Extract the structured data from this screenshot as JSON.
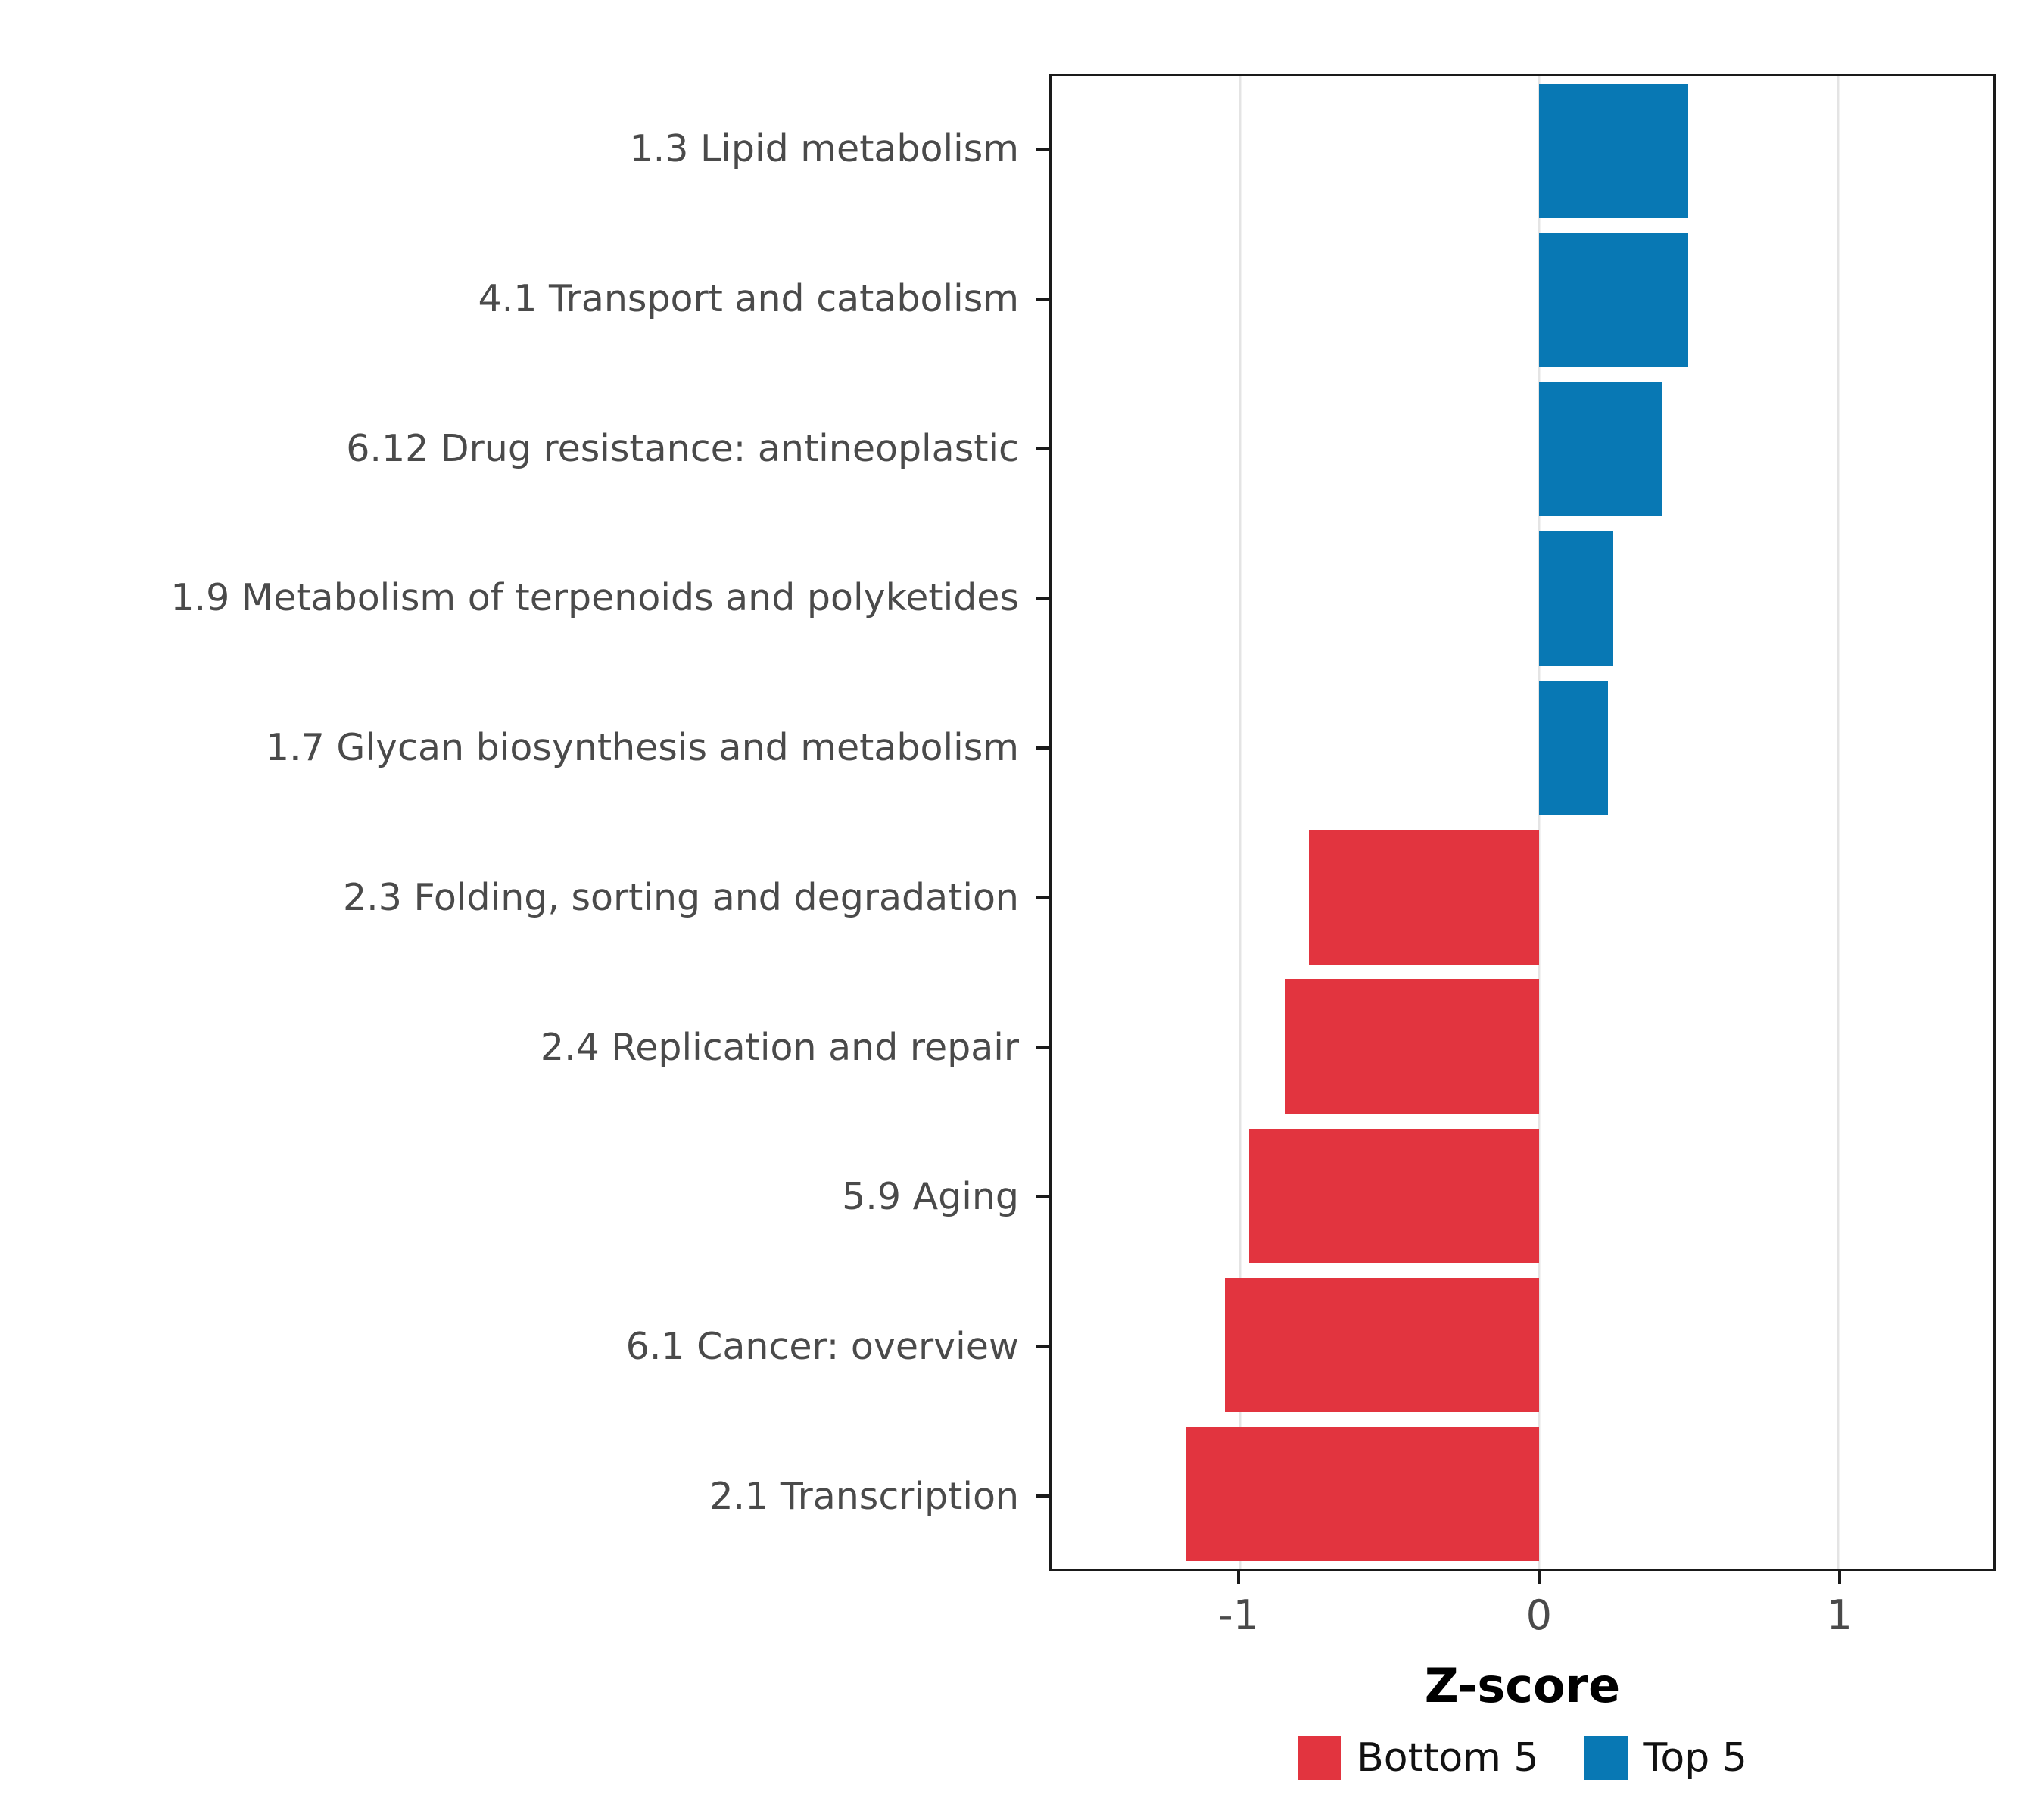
{
  "figure": {
    "background": "#ffffff",
    "panel_border_color": "#1a1a1a",
    "gridline_color": "#e4e4e4",
    "tick_label_color": "#4a4a4a"
  },
  "chart_data": {
    "type": "bar",
    "orientation": "horizontal",
    "title": "",
    "xlabel": "Z-score",
    "ylabel": "",
    "xlim": [
      -1.63,
      1.52
    ],
    "x_ticks": [
      -1,
      0,
      1
    ],
    "grid": "major-x",
    "legend_position": "bottom",
    "categories": [
      "1.3 Lipid metabolism",
      "4.1 Transport and catabolism",
      "6.12 Drug resistance: antineoplastic",
      "1.9 Metabolism of terpenoids and polyketides",
      "1.7 Glycan biosynthesis and metabolism",
      "2.3 Folding, sorting and degradation",
      "2.4 Replication and repair",
      "5.9 Aging",
      "6.1 Cancer: overview",
      "2.1 Transcription"
    ],
    "values": [
      0.5,
      0.5,
      0.41,
      0.25,
      0.23,
      -0.77,
      -0.85,
      -0.97,
      -1.05,
      -1.18
    ],
    "groups": [
      "Top 5",
      "Top 5",
      "Top 5",
      "Top 5",
      "Top 5",
      "Bottom 5",
      "Bottom 5",
      "Bottom 5",
      "Bottom 5",
      "Bottom 5"
    ],
    "colors": {
      "Bottom 5": "#e2343f",
      "Top 5": "#0878b4"
    },
    "legend": {
      "position": "bottom",
      "entries": [
        {
          "label": "Bottom 5",
          "color": "#e2343f"
        },
        {
          "label": "Top 5",
          "color": "#0878b4"
        }
      ]
    }
  }
}
